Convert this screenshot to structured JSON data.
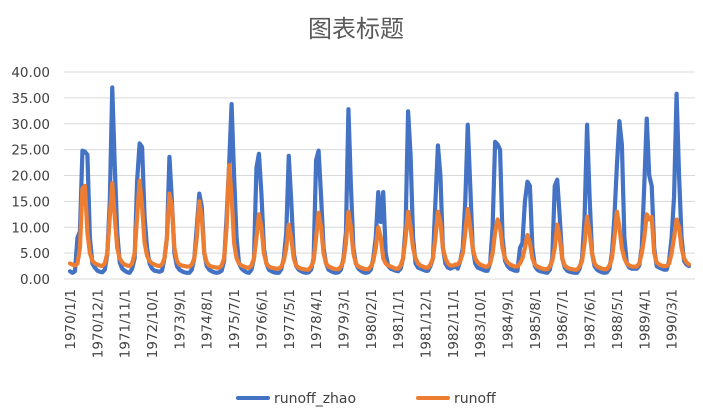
{
  "chart_data": {
    "type": "line",
    "title": "图表标题",
    "xlabel": "",
    "ylabel": "",
    "ylim": [
      0,
      40
    ],
    "yticks": [
      "0.00",
      "5.00",
      "10.00",
      "15.00",
      "20.00",
      "25.00",
      "30.00",
      "35.00",
      "40.00"
    ],
    "xtick_labels": [
      "1970/1/1",
      "1970/12/1",
      "1971/11/1",
      "1972/10/1",
      "1973/9/1",
      "1974/8/1",
      "1975/7/1",
      "1976/6/1",
      "1977/5/1",
      "1978/4/1",
      "1979/3/1",
      "1980/2/1",
      "1981/1/1",
      "1981/12/1",
      "1982/11/1",
      "1983/10/1",
      "1984/9/1",
      "1985/8/1",
      "1986/7/1",
      "1987/6/1",
      "1988/5/1",
      "1989/4/1",
      "1990/3/1"
    ],
    "x_start": "1970/1/1",
    "x_end": "1990/12/1",
    "grid": true,
    "legend_position": "bottom",
    "series": [
      {
        "name": "runoff_zhao",
        "color": "#4472C4",
        "values": [
          1.5,
          1.2,
          1.5,
          8.0,
          9.2,
          24.8,
          24.6,
          24.0,
          8.0,
          3.0,
          2.2,
          1.6,
          1.4,
          1.3,
          1.8,
          4.8,
          15.0,
          37.0,
          22.0,
          9.0,
          3.2,
          2.0,
          1.6,
          1.3,
          1.2,
          2.0,
          4.0,
          19.0,
          26.2,
          25.5,
          12.0,
          6.0,
          3.0,
          2.0,
          1.6,
          1.5,
          1.4,
          1.6,
          4.0,
          8.0,
          23.6,
          15.0,
          5.0,
          2.5,
          1.8,
          1.5,
          1.3,
          1.2,
          1.2,
          1.8,
          4.0,
          10.0,
          16.5,
          14.0,
          5.0,
          2.5,
          1.8,
          1.5,
          1.3,
          1.2,
          1.3,
          1.6,
          3.5,
          12.0,
          22.0,
          33.8,
          20.0,
          8.0,
          3.0,
          2.0,
          1.6,
          1.3,
          1.2,
          1.8,
          4.0,
          21.5,
          24.2,
          16.5,
          6.0,
          3.0,
          1.8,
          1.5,
          1.3,
          1.2,
          1.2,
          1.9,
          4.0,
          9.0,
          23.8,
          15.0,
          5.0,
          2.5,
          1.8,
          1.5,
          1.3,
          1.2,
          1.3,
          1.8,
          4.0,
          23.0,
          24.8,
          16.0,
          6.0,
          3.0,
          1.8,
          1.5,
          1.3,
          1.2,
          1.3,
          1.8,
          4.0,
          9.0,
          32.8,
          18.0,
          6.0,
          3.0,
          2.0,
          1.6,
          1.3,
          1.2,
          1.3,
          1.8,
          4.0,
          8.0,
          16.8,
          11.0,
          16.8,
          5.0,
          2.5,
          2.0,
          1.8,
          1.6,
          1.5,
          2.0,
          4.0,
          10.0,
          32.4,
          24.0,
          8.0,
          3.0,
          2.2,
          2.0,
          1.8,
          1.6,
          1.6,
          2.5,
          4.0,
          15.0,
          25.8,
          20.0,
          6.0,
          3.0,
          2.2,
          2.0,
          2.2,
          2.5,
          2.0,
          3.5,
          6.0,
          15.0,
          29.8,
          18.0,
          6.0,
          3.0,
          2.2,
          2.0,
          1.8,
          1.6,
          1.6,
          3.0,
          10.0,
          26.5,
          26.0,
          25.0,
          8.0,
          3.5,
          2.5,
          2.0,
          1.8,
          1.6,
          1.6,
          6.0,
          7.0,
          15.0,
          18.8,
          18.0,
          6.0,
          2.5,
          1.8,
          1.5,
          1.4,
          1.3,
          1.2,
          1.8,
          4.0,
          18.0,
          19.2,
          12.0,
          4.0,
          2.2,
          1.6,
          1.4,
          1.3,
          1.2,
          1.2,
          2.0,
          4.0,
          12.0,
          29.8,
          16.0,
          5.0,
          2.5,
          1.8,
          1.5,
          1.3,
          1.2,
          1.3,
          2.0,
          5.0,
          12.0,
          22.0,
          30.5,
          26.0,
          8.0,
          3.0,
          2.2,
          2.0,
          2.0,
          2.0,
          2.6,
          6.0,
          18.0,
          31.0,
          20.0,
          18.0,
          6.0,
          2.5,
          2.2,
          2.0,
          1.8,
          1.8,
          3.5,
          8.0,
          16.0,
          35.8,
          20.0,
          8.0,
          3.5,
          2.8,
          2.5
        ]
      },
      {
        "name": "runoff",
        "color": "#ED7D31",
        "values": [
          3.0,
          2.8,
          2.6,
          3.0,
          6.0,
          17.5,
          18.0,
          9.0,
          5.0,
          3.5,
          3.0,
          2.8,
          2.6,
          2.5,
          3.0,
          5.0,
          12.0,
          18.5,
          12.0,
          6.0,
          4.0,
          3.2,
          2.8,
          2.6,
          2.5,
          3.0,
          5.0,
          12.0,
          19.0,
          14.0,
          7.0,
          4.5,
          3.5,
          3.0,
          2.8,
          2.6,
          2.5,
          2.8,
          4.0,
          8.0,
          16.5,
          14.0,
          6.0,
          3.5,
          2.8,
          2.6,
          2.5,
          2.4,
          2.4,
          2.8,
          4.0,
          8.0,
          15.0,
          12.0,
          5.0,
          3.2,
          2.6,
          2.4,
          2.3,
          2.2,
          2.2,
          2.6,
          4.0,
          10.0,
          22.0,
          16.0,
          7.0,
          4.0,
          3.0,
          2.6,
          2.4,
          2.2,
          2.2,
          2.6,
          4.0,
          8.0,
          12.5,
          10.0,
          5.0,
          3.0,
          2.4,
          2.2,
          2.1,
          2.0,
          2.0,
          2.4,
          3.5,
          6.0,
          10.5,
          8.0,
          4.0,
          2.6,
          2.2,
          2.0,
          1.9,
          1.8,
          1.8,
          2.4,
          3.5,
          8.0,
          12.8,
          10.0,
          5.0,
          3.0,
          2.4,
          2.2,
          2.0,
          1.9,
          1.9,
          2.4,
          3.5,
          7.0,
          13.0,
          10.0,
          5.0,
          3.0,
          2.4,
          2.2,
          2.0,
          1.9,
          1.9,
          2.4,
          3.5,
          6.0,
          10.0,
          8.0,
          4.0,
          3.0,
          2.6,
          2.4,
          2.2,
          2.0,
          2.0,
          2.6,
          4.0,
          8.0,
          13.0,
          10.0,
          6.0,
          4.0,
          3.0,
          2.6,
          2.4,
          2.2,
          2.2,
          2.8,
          4.0,
          8.0,
          13.0,
          11.0,
          6.0,
          4.0,
          3.0,
          2.6,
          2.6,
          2.8,
          2.8,
          3.5,
          5.0,
          9.0,
          13.5,
          10.0,
          6.0,
          4.0,
          3.2,
          2.8,
          2.6,
          2.4,
          2.4,
          3.0,
          5.0,
          9.0,
          11.5,
          10.0,
          6.0,
          4.0,
          3.2,
          2.8,
          2.6,
          2.4,
          2.4,
          3.0,
          4.0,
          6.0,
          8.5,
          7.0,
          4.0,
          2.8,
          2.4,
          2.2,
          2.0,
          1.9,
          1.9,
          2.4,
          3.5,
          6.0,
          10.5,
          8.0,
          4.0,
          2.6,
          2.2,
          2.0,
          1.9,
          1.8,
          1.8,
          2.4,
          3.5,
          7.0,
          12.0,
          9.0,
          5.0,
          3.0,
          2.4,
          2.2,
          2.0,
          1.9,
          1.9,
          2.6,
          4.0,
          8.0,
          13.0,
          10.0,
          6.0,
          4.0,
          3.0,
          2.6,
          2.4,
          2.4,
          2.4,
          3.0,
          5.0,
          8.0,
          12.5,
          11.5,
          12.0,
          5.0,
          3.2,
          2.8,
          2.6,
          2.5,
          2.5,
          3.0,
          5.0,
          8.0,
          11.5,
          10.0,
          6.0,
          4.0,
          3.2,
          2.8
        ]
      }
    ]
  }
}
